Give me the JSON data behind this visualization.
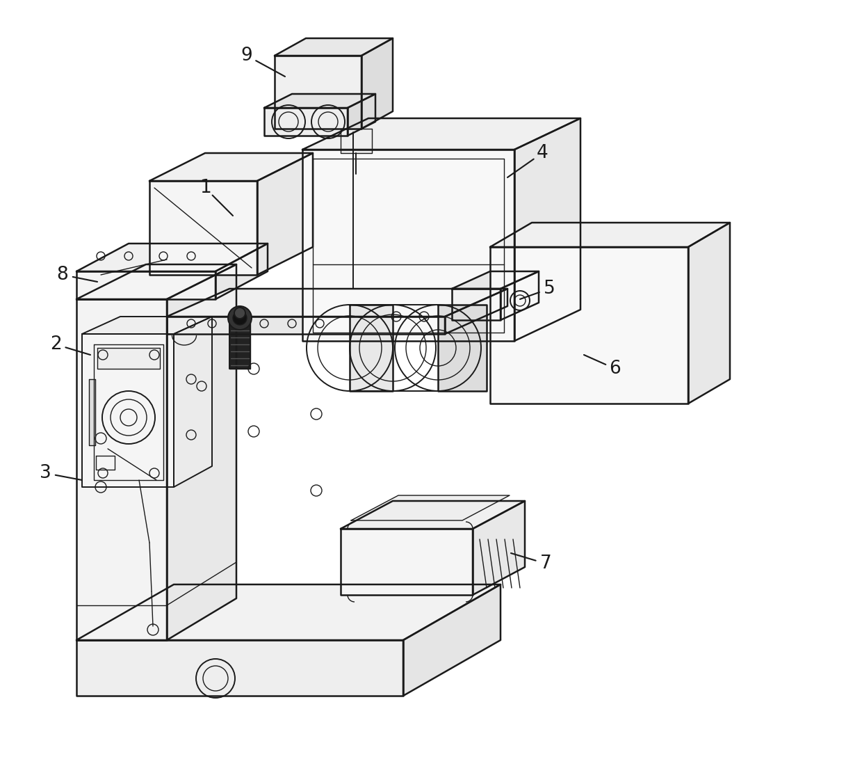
{
  "background_color": "#ffffff",
  "line_color": "#1a1a1a",
  "lw_main": 1.8,
  "lw_thin": 1.0,
  "lw_med": 1.4,
  "label_fontsize": 19,
  "figsize": [
    12.4,
    11.11
  ],
  "dpi": 100
}
